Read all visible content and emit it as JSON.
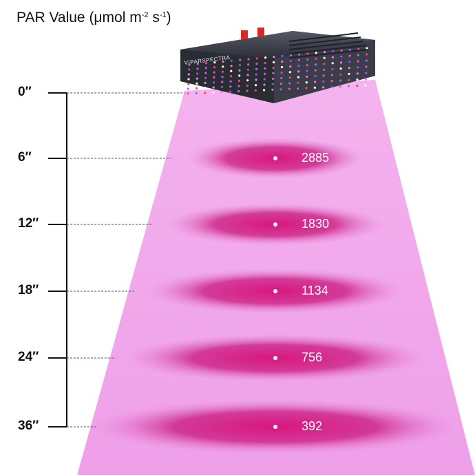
{
  "title": {
    "main": "PAR Value (μmol m",
    "exp1": "-2",
    "mid": " s",
    "exp2": "-1",
    "end": ")"
  },
  "fixture": {
    "brand_text": "VIPARSPECTRA",
    "icon": "led-grow-light-icon"
  },
  "colors": {
    "beam": "#f0a6ea",
    "beam_edge": "#f7c9f3",
    "hotspot": "#d2127a",
    "panel": "#3a3d47",
    "text": "#111111",
    "value_text": "#ffffff"
  },
  "chart_data": {
    "type": "table",
    "xlabel": "",
    "ylabel": "",
    "rows": [
      {
        "distance": "0″",
        "par": ""
      },
      {
        "distance": "6″",
        "par": "2885"
      },
      {
        "distance": "12″",
        "par": "1830"
      },
      {
        "distance": "18″",
        "par": "1134"
      },
      {
        "distance": "24″",
        "par": "756"
      },
      {
        "distance": "36″",
        "par": "392"
      }
    ]
  }
}
